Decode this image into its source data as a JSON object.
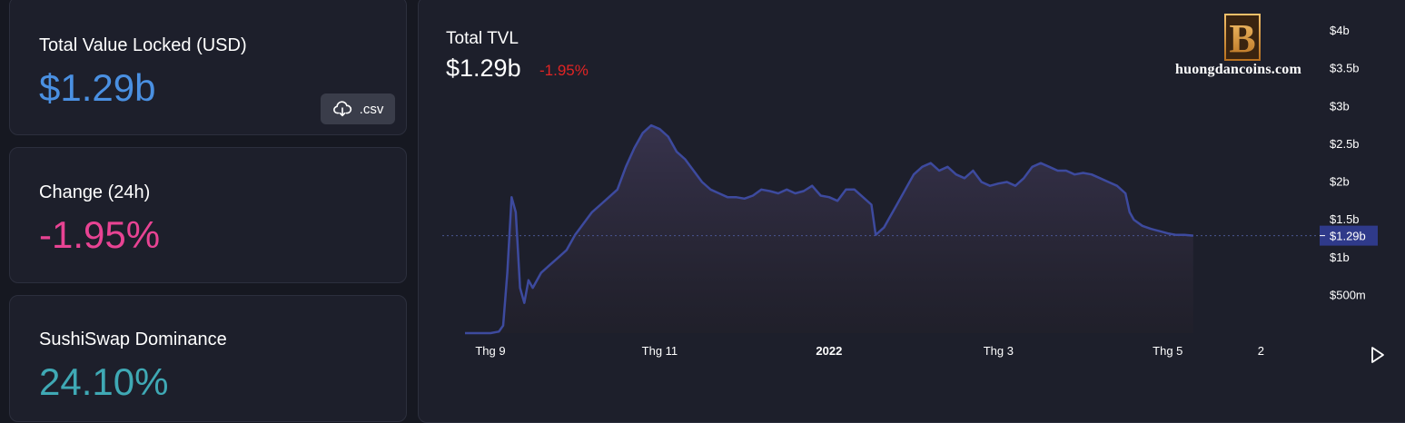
{
  "stats": {
    "tvl": {
      "label": "Total Value Locked (USD)",
      "value": "$1.29b",
      "color": "#4a90e2"
    },
    "change": {
      "label": "Change (24h)",
      "value": "-1.95%",
      "color": "#e84393"
    },
    "dominance": {
      "label": "SushiSwap Dominance",
      "value": "24.10%",
      "color": "#3fa9b5"
    },
    "csv_label": ".csv"
  },
  "chart": {
    "title": "Total TVL",
    "value": "$1.29b",
    "change": "-1.95%",
    "change_color": "#e02424",
    "watermark": "huongdancoins.com",
    "logo_letter": "B",
    "current_marker": "$1.29b",
    "line_color": "#3d4a9e"
  },
  "chart_data": {
    "type": "area",
    "y_ticks": [
      "$500m",
      "$1b",
      "$1.5b",
      "$2b",
      "$2.5b",
      "$3b",
      "$3.5b",
      "$4b"
    ],
    "y_tick_values": [
      0.5,
      1,
      1.5,
      2,
      2.5,
      3,
      3.5,
      4
    ],
    "x_ticks": [
      "Thg 9",
      "Thg 11",
      "2022",
      "Thg 3",
      "Thg 5",
      "2"
    ],
    "x_tick_positions": [
      0.0,
      2.0,
      4.0,
      6.0,
      8.0,
      9.1
    ],
    "ylim": [
      0,
      4
    ],
    "xlim": [
      -0.3,
      9.15
    ],
    "current": 1.29,
    "points": [
      [
        -0.3,
        0.0
      ],
      [
        0.0,
        0.0
      ],
      [
        0.1,
        0.02
      ],
      [
        0.15,
        0.1
      ],
      [
        0.2,
        0.8
      ],
      [
        0.25,
        1.8
      ],
      [
        0.3,
        1.6
      ],
      [
        0.35,
        0.6
      ],
      [
        0.4,
        0.4
      ],
      [
        0.45,
        0.7
      ],
      [
        0.5,
        0.6
      ],
      [
        0.6,
        0.8
      ],
      [
        0.7,
        0.9
      ],
      [
        0.8,
        1.0
      ],
      [
        0.9,
        1.1
      ],
      [
        1.0,
        1.3
      ],
      [
        1.1,
        1.45
      ],
      [
        1.2,
        1.6
      ],
      [
        1.3,
        1.7
      ],
      [
        1.4,
        1.8
      ],
      [
        1.5,
        1.9
      ],
      [
        1.6,
        2.2
      ],
      [
        1.7,
        2.45
      ],
      [
        1.8,
        2.65
      ],
      [
        1.9,
        2.75
      ],
      [
        2.0,
        2.7
      ],
      [
        2.1,
        2.6
      ],
      [
        2.2,
        2.4
      ],
      [
        2.3,
        2.3
      ],
      [
        2.4,
        2.15
      ],
      [
        2.5,
        2.0
      ],
      [
        2.6,
        1.9
      ],
      [
        2.7,
        1.85
      ],
      [
        2.8,
        1.8
      ],
      [
        2.9,
        1.8
      ],
      [
        3.0,
        1.78
      ],
      [
        3.1,
        1.82
      ],
      [
        3.2,
        1.9
      ],
      [
        3.3,
        1.88
      ],
      [
        3.4,
        1.85
      ],
      [
        3.5,
        1.9
      ],
      [
        3.6,
        1.85
      ],
      [
        3.7,
        1.88
      ],
      [
        3.8,
        1.95
      ],
      [
        3.9,
        1.82
      ],
      [
        4.0,
        1.8
      ],
      [
        4.1,
        1.75
      ],
      [
        4.2,
        1.9
      ],
      [
        4.3,
        1.9
      ],
      [
        4.4,
        1.8
      ],
      [
        4.5,
        1.7
      ],
      [
        4.55,
        1.3
      ],
      [
        4.65,
        1.4
      ],
      [
        4.7,
        1.5
      ],
      [
        4.8,
        1.7
      ],
      [
        4.9,
        1.9
      ],
      [
        5.0,
        2.1
      ],
      [
        5.1,
        2.2
      ],
      [
        5.2,
        2.25
      ],
      [
        5.3,
        2.15
      ],
      [
        5.4,
        2.2
      ],
      [
        5.5,
        2.1
      ],
      [
        5.6,
        2.05
      ],
      [
        5.7,
        2.15
      ],
      [
        5.8,
        2.0
      ],
      [
        5.9,
        1.95
      ],
      [
        6.0,
        1.98
      ],
      [
        6.1,
        2.0
      ],
      [
        6.2,
        1.95
      ],
      [
        6.3,
        2.05
      ],
      [
        6.4,
        2.2
      ],
      [
        6.5,
        2.25
      ],
      [
        6.6,
        2.2
      ],
      [
        6.7,
        2.15
      ],
      [
        6.8,
        2.15
      ],
      [
        6.9,
        2.1
      ],
      [
        7.0,
        2.12
      ],
      [
        7.1,
        2.1
      ],
      [
        7.2,
        2.05
      ],
      [
        7.3,
        2.0
      ],
      [
        7.4,
        1.95
      ],
      [
        7.5,
        1.85
      ],
      [
        7.55,
        1.6
      ],
      [
        7.6,
        1.5
      ],
      [
        7.7,
        1.42
      ],
      [
        7.8,
        1.38
      ],
      [
        7.9,
        1.35
      ],
      [
        8.0,
        1.32
      ],
      [
        8.1,
        1.3
      ],
      [
        8.2,
        1.3
      ],
      [
        8.3,
        1.29
      ]
    ]
  }
}
